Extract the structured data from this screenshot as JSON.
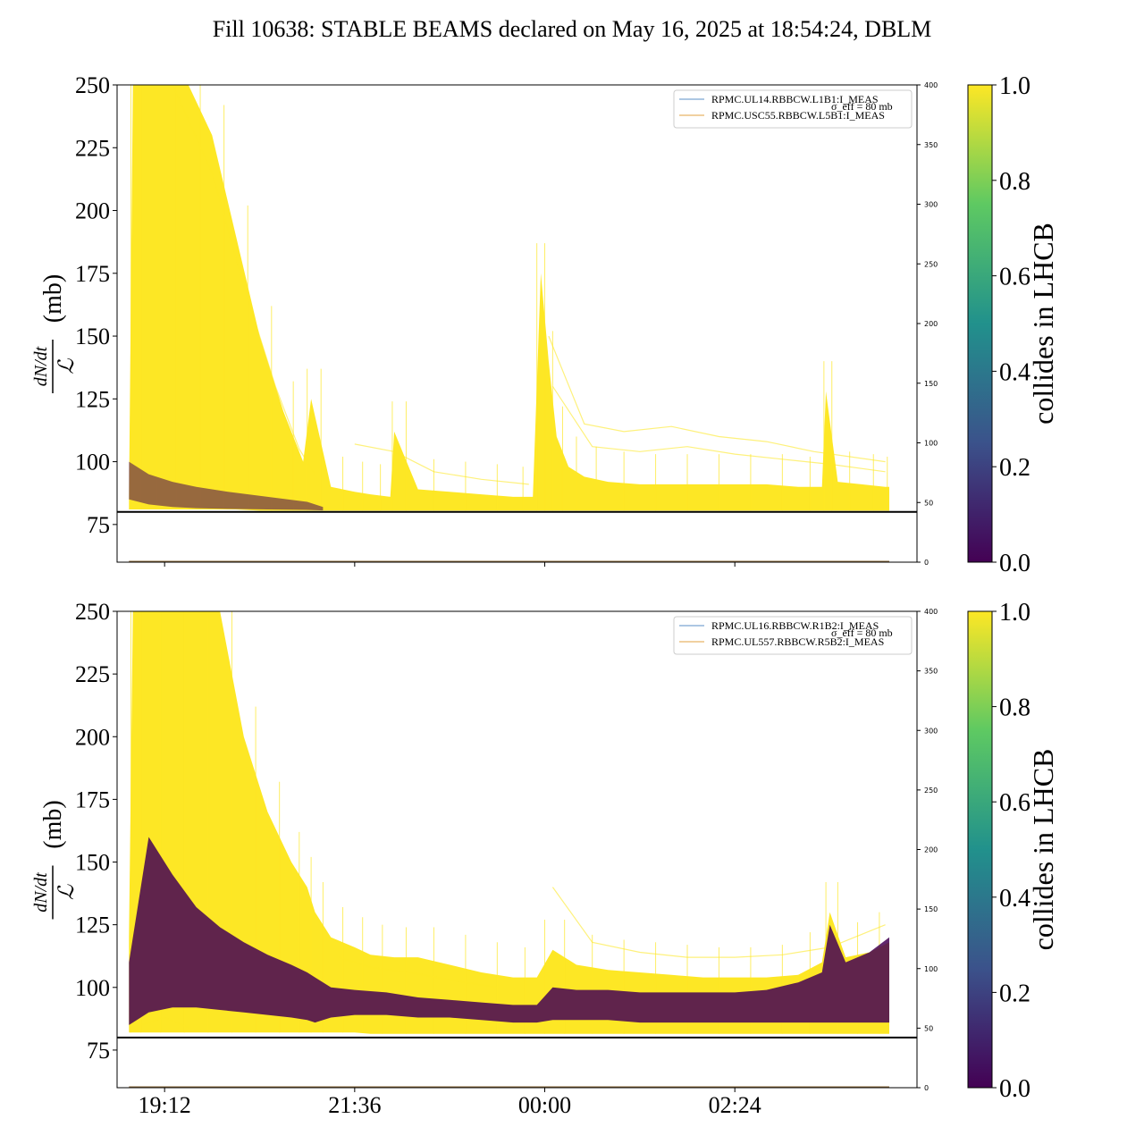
{
  "figure_title": "Fill 10638: STABLE BEAMS declared on May 16, 2025 at 18:54:24, DBLM",
  "colors": {
    "yellow": "#fde725",
    "dark_purple": "#440154",
    "threshold_line": "#000000",
    "legend_line_blue": "#5b8fc7",
    "legend_line_orange": "#e0a040",
    "colorbar_stops": [
      "#440154",
      "#3b528b",
      "#21918c",
      "#5ec962",
      "#fde725"
    ]
  },
  "chart_data": [
    {
      "type": "area",
      "panel": "top",
      "ylabel_numerator": "dN/dt",
      "ylabel_denominator": "ℒ",
      "ylabel_unit": "(mb)",
      "ylim": [
        60,
        250
      ],
      "yticks": [
        "75",
        "100",
        "125",
        "150",
        "175",
        "200",
        "225",
        "250"
      ],
      "y2lim": [
        0,
        400
      ],
      "y2ticks": [
        "0",
        "50",
        "100",
        "150",
        "200",
        "250",
        "300",
        "350",
        "400"
      ],
      "x_tick_hours": [
        19.2,
        21.6,
        24.0,
        26.4
      ],
      "threshold": 80,
      "legend": [
        "RPMC.UL14.RBBCW.L1B1:I_MEAS",
        "RPMC.USC55.RBBCW.L5B1:I_MEAS"
      ],
      "legend_faded_text": "σ_eff = 80 mb",
      "colorbar_label": "collides in LHCB",
      "colorbar_ticks": [
        "0.0",
        "0.2",
        "0.4",
        "0.6",
        "0.8",
        "1.0"
      ],
      "envelope_yellow": {
        "x": [
          18.75,
          18.8,
          19.0,
          19.2,
          19.5,
          19.8,
          20.1,
          20.4,
          20.7,
          20.95,
          21.05,
          21.3,
          21.6,
          21.8,
          22.05,
          22.1,
          22.4,
          22.8,
          23.2,
          23.6,
          23.85,
          23.95,
          24.05,
          24.15,
          24.3,
          24.5,
          24.8,
          25.2,
          25.6,
          26.0,
          26.4,
          26.8,
          27.2,
          27.5,
          27.55,
          27.7,
          28.0,
          28.3,
          28.35
        ],
        "lo": [
          81,
          81,
          81,
          81,
          81,
          81,
          81,
          80.5,
          80.5,
          80.5,
          80.5,
          80.5,
          80.5,
          80.5,
          80.5,
          80.5,
          80.5,
          80.5,
          80.5,
          80.5,
          80.5,
          80.5,
          80.5,
          80.5,
          80.5,
          80.5,
          80.5,
          80.5,
          80.5,
          80.5,
          80.5,
          80.5,
          80.5,
          80.5,
          80.5,
          80.5,
          80.5,
          80.5,
          80.5
        ],
        "hi": [
          85,
          250,
          250,
          250,
          250,
          230,
          190,
          150,
          120,
          100,
          125,
          90,
          88,
          87,
          86,
          112,
          89,
          88,
          87,
          86,
          86,
          175,
          140,
          110,
          98,
          94,
          92,
          91,
          91,
          91,
          91,
          91,
          90,
          90,
          128,
          92,
          91,
          90,
          90
        ]
      },
      "envelope_purple": {
        "x": [
          18.75,
          19.0,
          19.3,
          19.6,
          20.0,
          20.5,
          21.0,
          21.2
        ],
        "lo": [
          85,
          83,
          82,
          81.5,
          81.2,
          81,
          80.8,
          80.6
        ],
        "hi": [
          100,
          95,
          92,
          90,
          88,
          86,
          84,
          82
        ]
      },
      "faint_lines": [
        {
          "x": [
            19.3,
            19.8,
            20.2,
            20.6,
            20.9,
            21.1
          ],
          "y": [
            250,
            215,
            170,
            130,
            105,
            95
          ]
        },
        {
          "x": [
            21.6,
            22.1,
            22.6,
            23.2,
            23.8
          ],
          "y": [
            107,
            104,
            96,
            93,
            91
          ]
        },
        {
          "x": [
            24.05,
            24.5,
            25.0,
            25.6,
            26.2,
            26.8,
            27.4,
            28.3
          ],
          "y": [
            150,
            115,
            112,
            114,
            110,
            108,
            104,
            100
          ]
        },
        {
          "x": [
            24.1,
            24.6,
            25.2,
            25.8,
            26.4,
            27.0,
            27.6,
            28.3
          ],
          "y": [
            130,
            106,
            104,
            106,
            103,
            101,
            99,
            96
          ]
        }
      ]
    },
    {
      "type": "area",
      "panel": "bottom",
      "ylabel_numerator": "dN/dt",
      "ylabel_denominator": "ℒ",
      "ylabel_unit": "(mb)",
      "ylim": [
        60,
        250
      ],
      "yticks": [
        "75",
        "100",
        "125",
        "150",
        "175",
        "200",
        "225",
        "250"
      ],
      "y2lim": [
        0,
        400
      ],
      "y2ticks": [
        "0",
        "50",
        "100",
        "150",
        "200",
        "250",
        "300",
        "350",
        "400"
      ],
      "xticks": [
        "19:12",
        "21:36",
        "00:00",
        "02:24"
      ],
      "x_tick_hours": [
        19.2,
        21.6,
        24.0,
        26.4
      ],
      "threshold": 80,
      "legend": [
        "RPMC.UL16.RBBCW.R1B2:I_MEAS",
        "RPMC.UL557.RBBCW.R5B2:I_MEAS"
      ],
      "legend_faded_text": "σ_eff = 80 mb",
      "colorbar_label": "collides in LHCB",
      "colorbar_ticks": [
        "0.0",
        "0.2",
        "0.4",
        "0.6",
        "0.8",
        "1.0"
      ],
      "envelope_yellow": {
        "x": [
          18.75,
          18.8,
          19.0,
          19.3,
          19.6,
          19.9,
          20.2,
          20.5,
          20.8,
          21.0,
          21.1,
          21.3,
          21.6,
          21.8,
          22.1,
          22.4,
          22.8,
          23.2,
          23.6,
          23.9,
          24.1,
          24.4,
          24.8,
          25.2,
          25.6,
          26.0,
          26.4,
          26.8,
          27.2,
          27.5,
          27.6,
          27.8,
          28.1,
          28.35
        ],
        "lo": [
          82,
          82,
          82,
          82,
          82,
          82,
          82,
          82,
          82,
          82,
          82,
          82,
          82,
          81.5,
          81.5,
          81.5,
          81.5,
          81.5,
          81.5,
          81.5,
          81.5,
          81.5,
          81.5,
          81.5,
          81.5,
          81.5,
          81.5,
          81.5,
          81.5,
          81.5,
          81.5,
          81.5,
          81.5,
          81.5
        ],
        "hi": [
          120,
          250,
          250,
          250,
          250,
          250,
          200,
          170,
          150,
          140,
          130,
          120,
          116,
          113,
          112,
          112,
          109,
          106,
          104,
          104,
          115,
          109,
          107,
          106,
          105,
          104,
          104,
          104,
          105,
          110,
          130,
          112,
          114,
          118
        ]
      },
      "envelope_purple": {
        "x": [
          18.75,
          19.0,
          19.3,
          19.6,
          19.9,
          20.2,
          20.5,
          20.8,
          21.0,
          21.1,
          21.3,
          21.6,
          22.0,
          22.4,
          22.8,
          23.2,
          23.6,
          23.9,
          24.1,
          24.4,
          24.8,
          25.2,
          25.6,
          26.0,
          26.4,
          26.8,
          27.2,
          27.5,
          27.6,
          27.8,
          28.1,
          28.35
        ],
        "lo": [
          85,
          90,
          92,
          92,
          91,
          90,
          89,
          88,
          87,
          86,
          88,
          89,
          89,
          88,
          88,
          87,
          86,
          86,
          87,
          87,
          87,
          86,
          86,
          86,
          86,
          86,
          86,
          86,
          86,
          86,
          86,
          86
        ],
        "hi": [
          110,
          160,
          145,
          132,
          124,
          118,
          113,
          109,
          106,
          104,
          100,
          99,
          98,
          96,
          95,
          94,
          93,
          93,
          100,
          99,
          99,
          98,
          98,
          98,
          98,
          99,
          102,
          106,
          125,
          110,
          114,
          120
        ]
      },
      "faint_lines": [
        {
          "x": [
            21.4,
            21.8,
            22.3,
            22.8,
            23.4
          ],
          "y": [
            112,
            108,
            106,
            103,
            100
          ]
        },
        {
          "x": [
            24.1,
            24.6,
            25.2,
            25.8,
            26.4,
            27.0,
            27.6,
            28.3
          ],
          "y": [
            140,
            118,
            114,
            112,
            112,
            113,
            116,
            125
          ]
        },
        {
          "x": [
            18.9,
            19.2,
            19.5
          ],
          "y": [
            85,
            88,
            84
          ]
        }
      ]
    }
  ]
}
